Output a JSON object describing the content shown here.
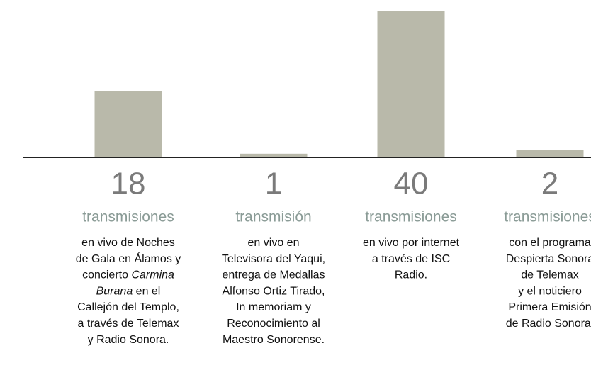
{
  "chart_data": {
    "type": "bar",
    "values": [
      18,
      1,
      40,
      2
    ],
    "color": "#b9b9aa",
    "ylim": [
      0,
      40
    ],
    "units": [
      "transmisiones",
      "transmisión",
      "transmisiones",
      "transmisiones"
    ],
    "descriptions": [
      [
        [
          {
            "text": "en vivo de Noches"
          }
        ],
        [
          {
            "text": "de Gala en Álamos y"
          }
        ],
        [
          {
            "text": "concierto "
          },
          {
            "text": "Carmina",
            "italic": true
          }
        ],
        [
          {
            "text": "Burana",
            "italic": true
          },
          {
            "text": " en el"
          }
        ],
        [
          {
            "text": "Callejón del Templo,"
          }
        ],
        [
          {
            "text": "a través de Telemax"
          }
        ],
        [
          {
            "text": "y Radio Sonora."
          }
        ]
      ],
      [
        [
          {
            "text": "en vivo en"
          }
        ],
        [
          {
            "text": "Televisora del Yaqui,"
          }
        ],
        [
          {
            "text": "entrega de Medallas"
          }
        ],
        [
          {
            "text": "Alfonso Ortiz Tirado,"
          }
        ],
        [
          {
            "text": "In memoriam y"
          }
        ],
        [
          {
            "text": "Reconocimiento al"
          }
        ],
        [
          {
            "text": "Maestro Sonorense."
          }
        ]
      ],
      [
        [
          {
            "text": "en vivo por internet"
          }
        ],
        [
          {
            "text": "a través de ISC"
          }
        ],
        [
          {
            "text": "Radio."
          }
        ]
      ],
      [
        [
          {
            "text": "con el programa"
          }
        ],
        [
          {
            "text": "Despierta Sonora"
          }
        ],
        [
          {
            "text": "de Telemax"
          }
        ],
        [
          {
            "text": "y el noticiero"
          }
        ],
        [
          {
            "text": "Primera Emisión"
          }
        ],
        [
          {
            "text": "de Radio Sonora."
          }
        ]
      ]
    ]
  }
}
